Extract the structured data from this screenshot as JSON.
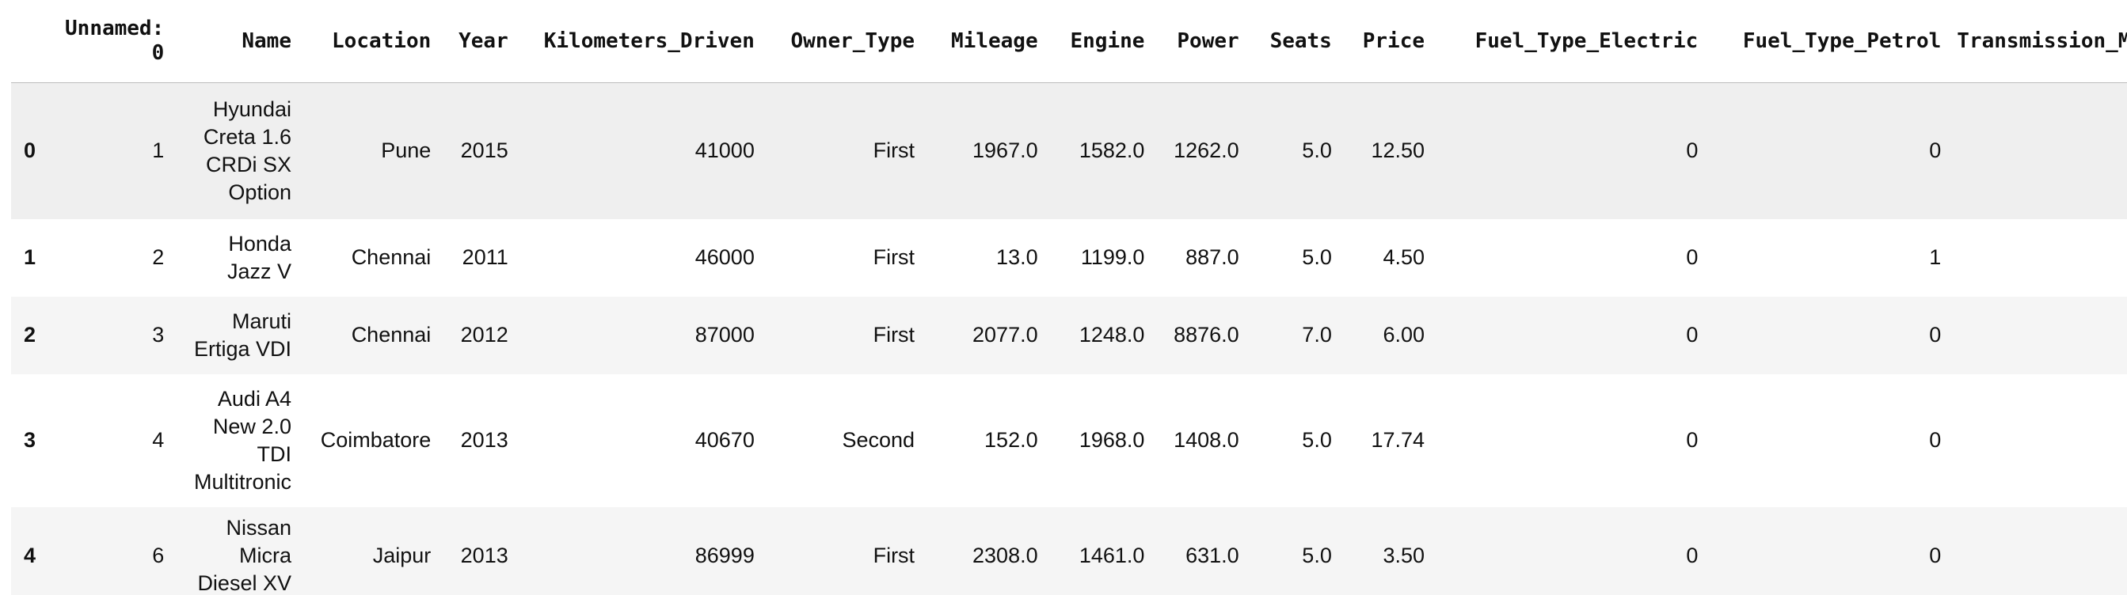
{
  "table": {
    "columns": [
      "",
      "Unnamed: 0",
      "Name",
      "Location",
      "Year",
      "Kilometers_Driven",
      "Owner_Type",
      "Mileage",
      "Engine",
      "Power",
      "Seats",
      "Price",
      "Fuel_Type_Electric",
      "Fuel_Type_Petrol",
      "Transmission_Manu"
    ],
    "rows": [
      {
        "index": "0",
        "unnamed": "1",
        "name": "Hyundai Creta 1.6 CRDi SX Option",
        "location": "Pune",
        "year": "2015",
        "kilometers_driven": "41000",
        "owner_type": "First",
        "mileage": "1967.0",
        "engine": "1582.0",
        "power": "1262.0",
        "seats": "5.0",
        "price": "12.50",
        "fuel_type_electric": "0",
        "fuel_type_petrol": "0",
        "transmission": ""
      },
      {
        "index": "1",
        "unnamed": "2",
        "name": "Honda Jazz V",
        "location": "Chennai",
        "year": "2011",
        "kilometers_driven": "46000",
        "owner_type": "First",
        "mileage": "13.0",
        "engine": "1199.0",
        "power": "887.0",
        "seats": "5.0",
        "price": "4.50",
        "fuel_type_electric": "0",
        "fuel_type_petrol": "1",
        "transmission": ""
      },
      {
        "index": "2",
        "unnamed": "3",
        "name": "Maruti Ertiga VDI",
        "location": "Chennai",
        "year": "2012",
        "kilometers_driven": "87000",
        "owner_type": "First",
        "mileage": "2077.0",
        "engine": "1248.0",
        "power": "8876.0",
        "seats": "7.0",
        "price": "6.00",
        "fuel_type_electric": "0",
        "fuel_type_petrol": "0",
        "transmission": ""
      },
      {
        "index": "3",
        "unnamed": "4",
        "name": "Audi A4 New 2.0 TDI Multitronic",
        "location": "Coimbatore",
        "year": "2013",
        "kilometers_driven": "40670",
        "owner_type": "Second",
        "mileage": "152.0",
        "engine": "1968.0",
        "power": "1408.0",
        "seats": "5.0",
        "price": "17.74",
        "fuel_type_electric": "0",
        "fuel_type_petrol": "0",
        "transmission": ""
      },
      {
        "index": "4",
        "unnamed": "6",
        "name": "Nissan Micra Diesel XV",
        "location": "Jaipur",
        "year": "2013",
        "kilometers_driven": "86999",
        "owner_type": "First",
        "mileage": "2308.0",
        "engine": "1461.0",
        "power": "631.0",
        "seats": "5.0",
        "price": "3.50",
        "fuel_type_electric": "0",
        "fuel_type_petrol": "0",
        "transmission": ""
      }
    ]
  }
}
